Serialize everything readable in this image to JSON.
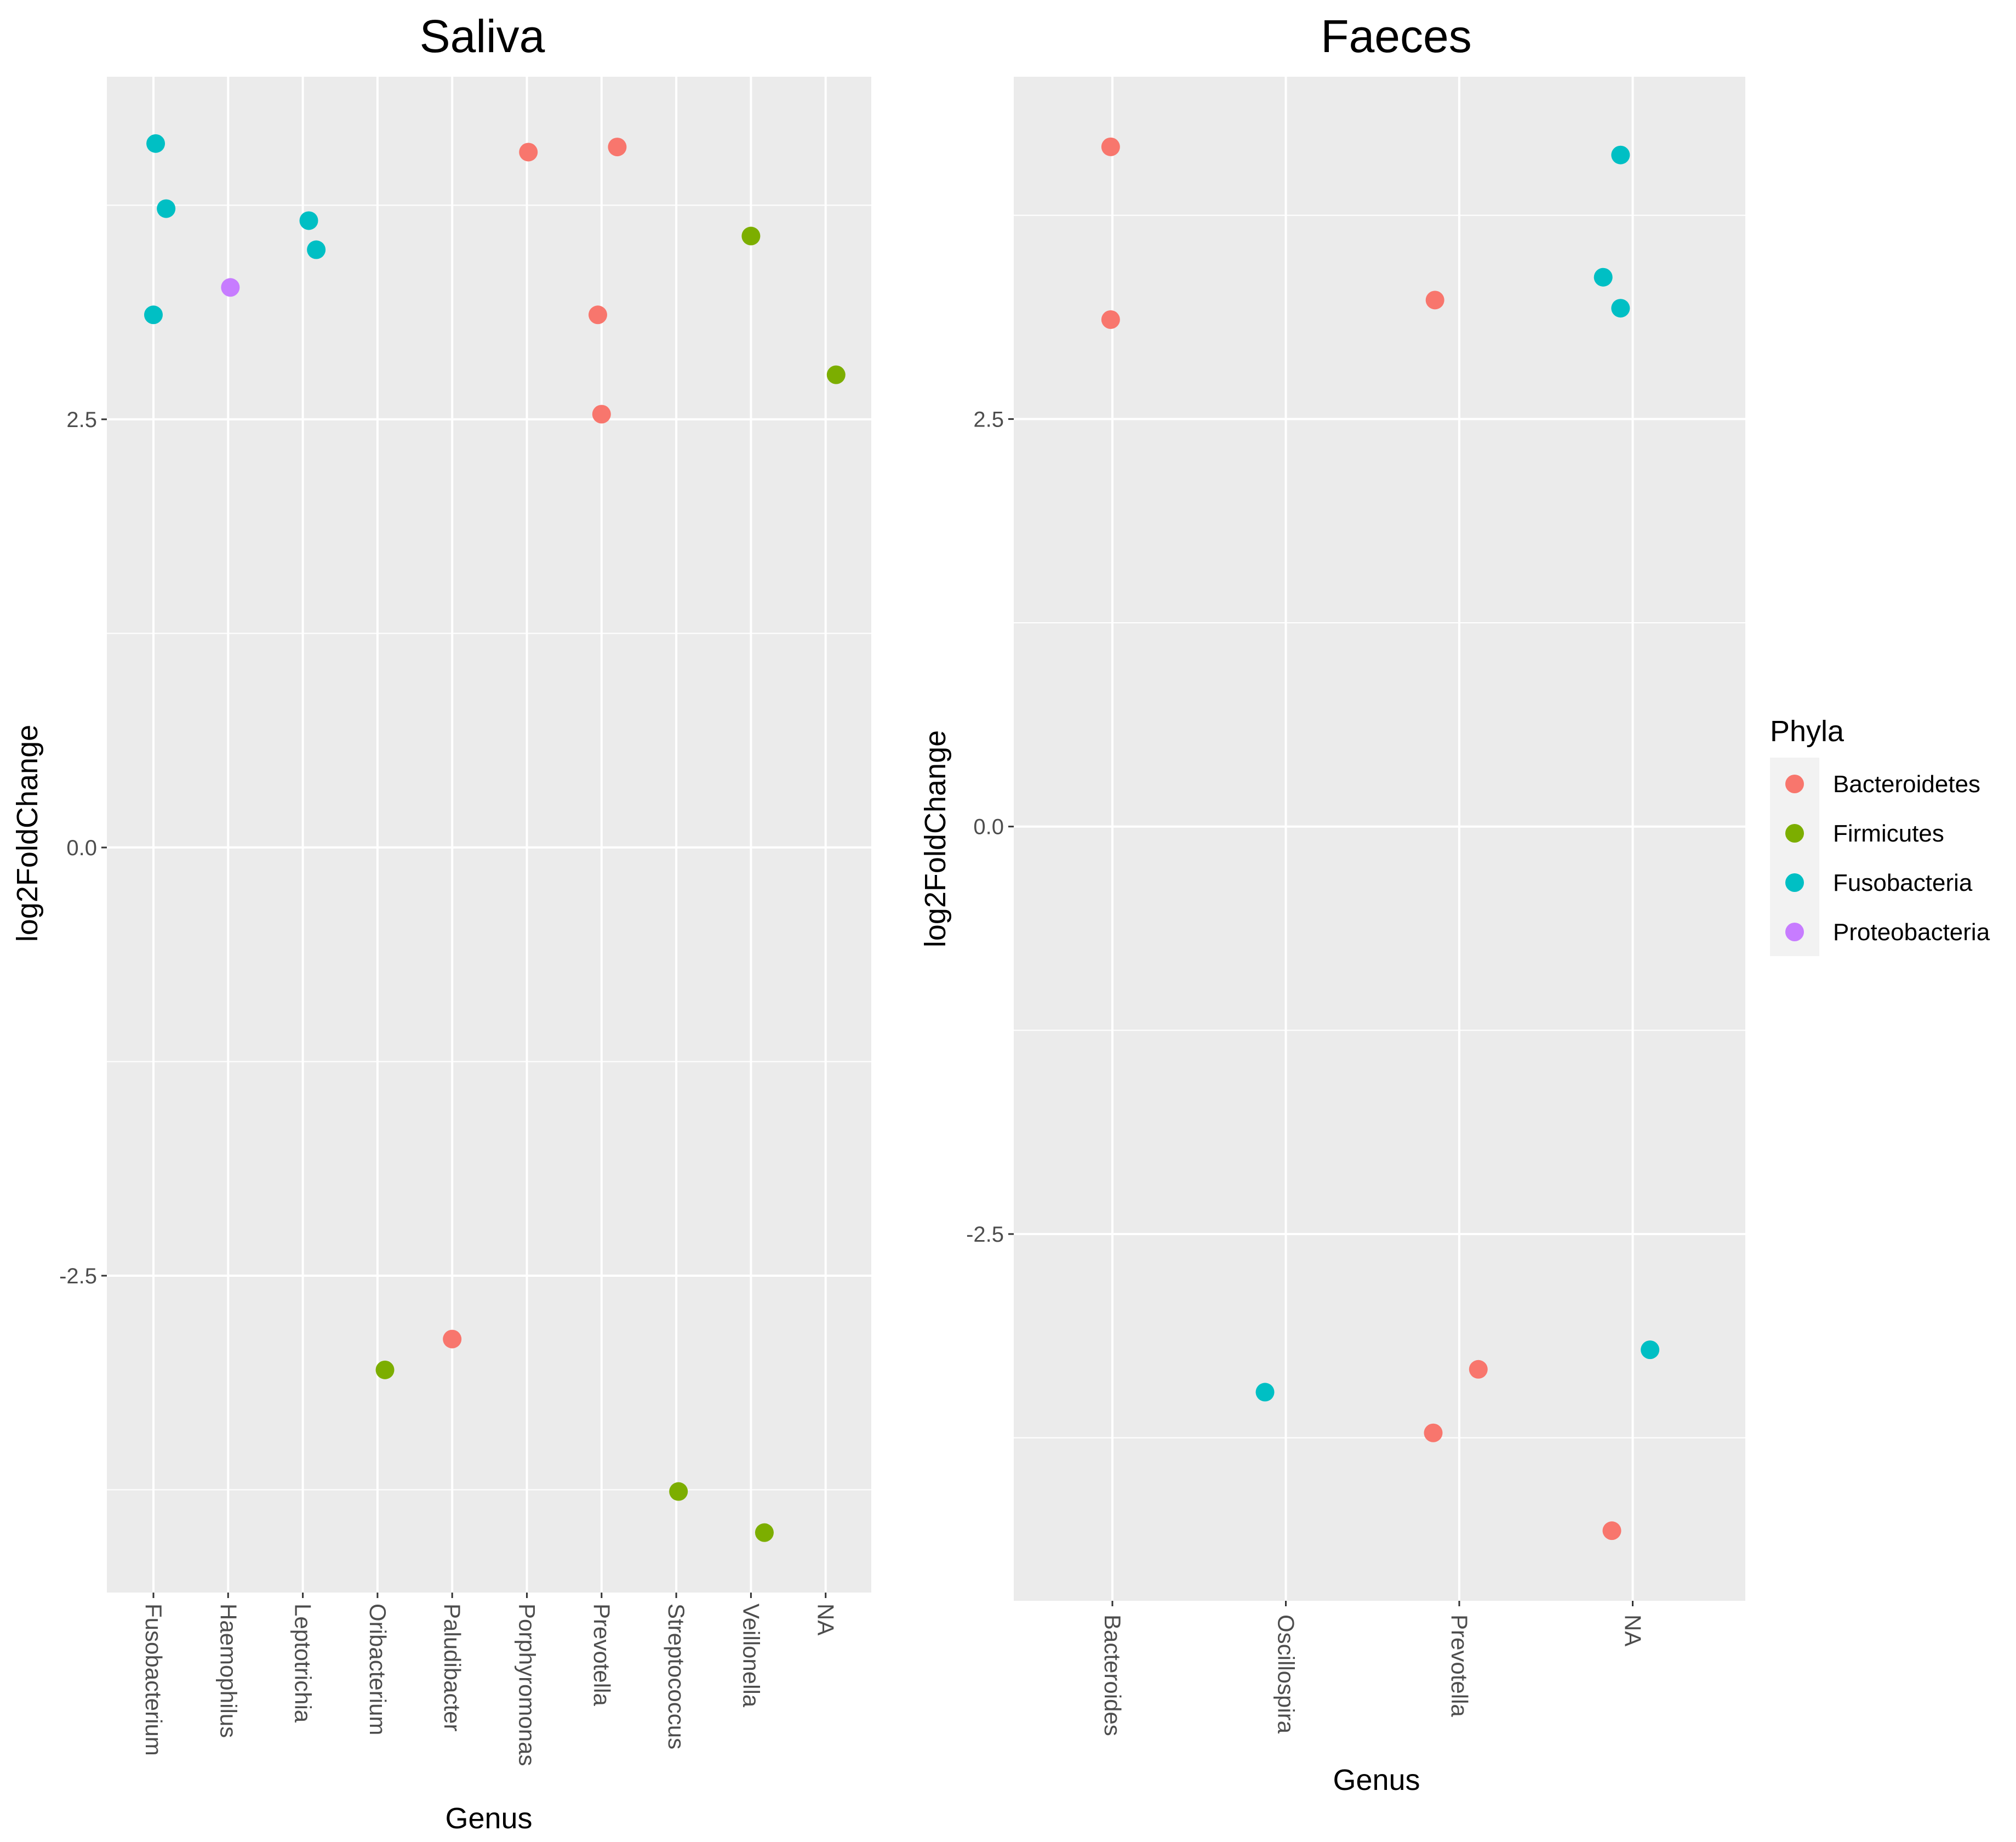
{
  "chart_data": [
    {
      "type": "scatter",
      "title": "Saliva",
      "xlabel": "Genus",
      "ylabel": "log2FoldChange",
      "categories": [
        "Fusobacterium",
        "Haemophilus",
        "Leptotrichia",
        "Oribacterium",
        "Paludibacter",
        "Porphyromonas",
        "Prevotella",
        "Streptococcus",
        "Veillonella",
        "NA"
      ],
      "yticks": [
        -2.5,
        0.0,
        2.5
      ],
      "ytick_labels": [
        "-2.5",
        "0.0",
        "2.5"
      ],
      "ylim": [
        -4.35,
        4.5
      ],
      "points": [
        {
          "genus": "Fusobacterium",
          "jitter": 0.03,
          "y": 4.11,
          "phylum": "Fusobacteria"
        },
        {
          "genus": "Fusobacterium",
          "jitter": 0.17,
          "y": 3.73,
          "phylum": "Fusobacteria"
        },
        {
          "genus": "Fusobacterium",
          "jitter": 0.0,
          "y": 3.11,
          "phylum": "Fusobacteria"
        },
        {
          "genus": "Haemophilus",
          "jitter": 0.03,
          "y": 3.27,
          "phylum": "Proteobacteria"
        },
        {
          "genus": "Leptotrichia",
          "jitter": 0.08,
          "y": 3.66,
          "phylum": "Fusobacteria"
        },
        {
          "genus": "Leptotrichia",
          "jitter": 0.18,
          "y": 3.49,
          "phylum": "Fusobacteria"
        },
        {
          "genus": "Oribacterium",
          "jitter": 0.1,
          "y": -3.05,
          "phylum": "Firmicutes"
        },
        {
          "genus": "Paludibacter",
          "jitter": 0.0,
          "y": -2.87,
          "phylum": "Bacteroidetes"
        },
        {
          "genus": "Porphyromonas",
          "jitter": 0.02,
          "y": 4.06,
          "phylum": "Bacteroidetes"
        },
        {
          "genus": "Prevotella",
          "jitter": 0.21,
          "y": 4.09,
          "phylum": "Bacteroidetes"
        },
        {
          "genus": "Prevotella",
          "jitter": -0.05,
          "y": 3.11,
          "phylum": "Bacteroidetes"
        },
        {
          "genus": "Prevotella",
          "jitter": 0.0,
          "y": 2.53,
          "phylum": "Bacteroidetes"
        },
        {
          "genus": "Streptococcus",
          "jitter": 0.03,
          "y": -3.76,
          "phylum": "Firmicutes"
        },
        {
          "genus": "Veillonella",
          "jitter": 0.0,
          "y": 3.57,
          "phylum": "Firmicutes"
        },
        {
          "genus": "Veillonella",
          "jitter": 0.18,
          "y": -4.0,
          "phylum": "Firmicutes"
        },
        {
          "genus": "NA",
          "jitter": 0.14,
          "y": 2.76,
          "phylum": "Firmicutes"
        }
      ]
    },
    {
      "type": "scatter",
      "title": "Faeces",
      "xlabel": "Genus",
      "ylabel": "log2FoldChange",
      "categories": [
        "Bacteroides",
        "Oscillospira",
        "Prevotella",
        "NA"
      ],
      "yticks": [
        -2.5,
        0.0,
        2.5
      ],
      "ytick_labels": [
        "-2.5",
        "0.0",
        "2.5"
      ],
      "ylim": [
        -4.75,
        4.6
      ],
      "points": [
        {
          "genus": "Bacteroides",
          "jitter": -0.01,
          "y": 4.17,
          "phylum": "Bacteroidetes"
        },
        {
          "genus": "Bacteroides",
          "jitter": -0.01,
          "y": 3.11,
          "phylum": "Bacteroidetes"
        },
        {
          "genus": "Oscillospira",
          "jitter": -0.12,
          "y": -3.47,
          "phylum": "Fusobacteria"
        },
        {
          "genus": "Prevotella",
          "jitter": -0.14,
          "y": 3.23,
          "phylum": "Bacteroidetes"
        },
        {
          "genus": "Prevotella",
          "jitter": -0.15,
          "y": -3.72,
          "phylum": "Bacteroidetes"
        },
        {
          "genus": "Prevotella",
          "jitter": 0.11,
          "y": -3.33,
          "phylum": "Bacteroidetes"
        },
        {
          "genus": "NA",
          "jitter": -0.07,
          "y": 4.12,
          "phylum": "Fusobacteria"
        },
        {
          "genus": "NA",
          "jitter": -0.17,
          "y": 3.37,
          "phylum": "Fusobacteria"
        },
        {
          "genus": "NA",
          "jitter": -0.07,
          "y": 3.18,
          "phylum": "Fusobacteria"
        },
        {
          "genus": "NA",
          "jitter": 0.1,
          "y": -3.21,
          "phylum": "Fusobacteria"
        },
        {
          "genus": "NA",
          "jitter": -0.12,
          "y": -4.32,
          "phylum": "Bacteroidetes"
        }
      ]
    }
  ],
  "legend": {
    "title": "Phyla",
    "entries": [
      {
        "label": "Bacteroidetes",
        "color": "#F8766D"
      },
      {
        "label": "Firmicutes",
        "color": "#7CAE00"
      },
      {
        "label": "Fusobacteria",
        "color": "#00BFC4"
      },
      {
        "label": "Proteobacteria",
        "color": "#C77CFF"
      }
    ]
  },
  "colors": {
    "panel_background": "#EBEBEB",
    "grid": "#FFFFFF",
    "tick_text": "#4D4D4D"
  }
}
